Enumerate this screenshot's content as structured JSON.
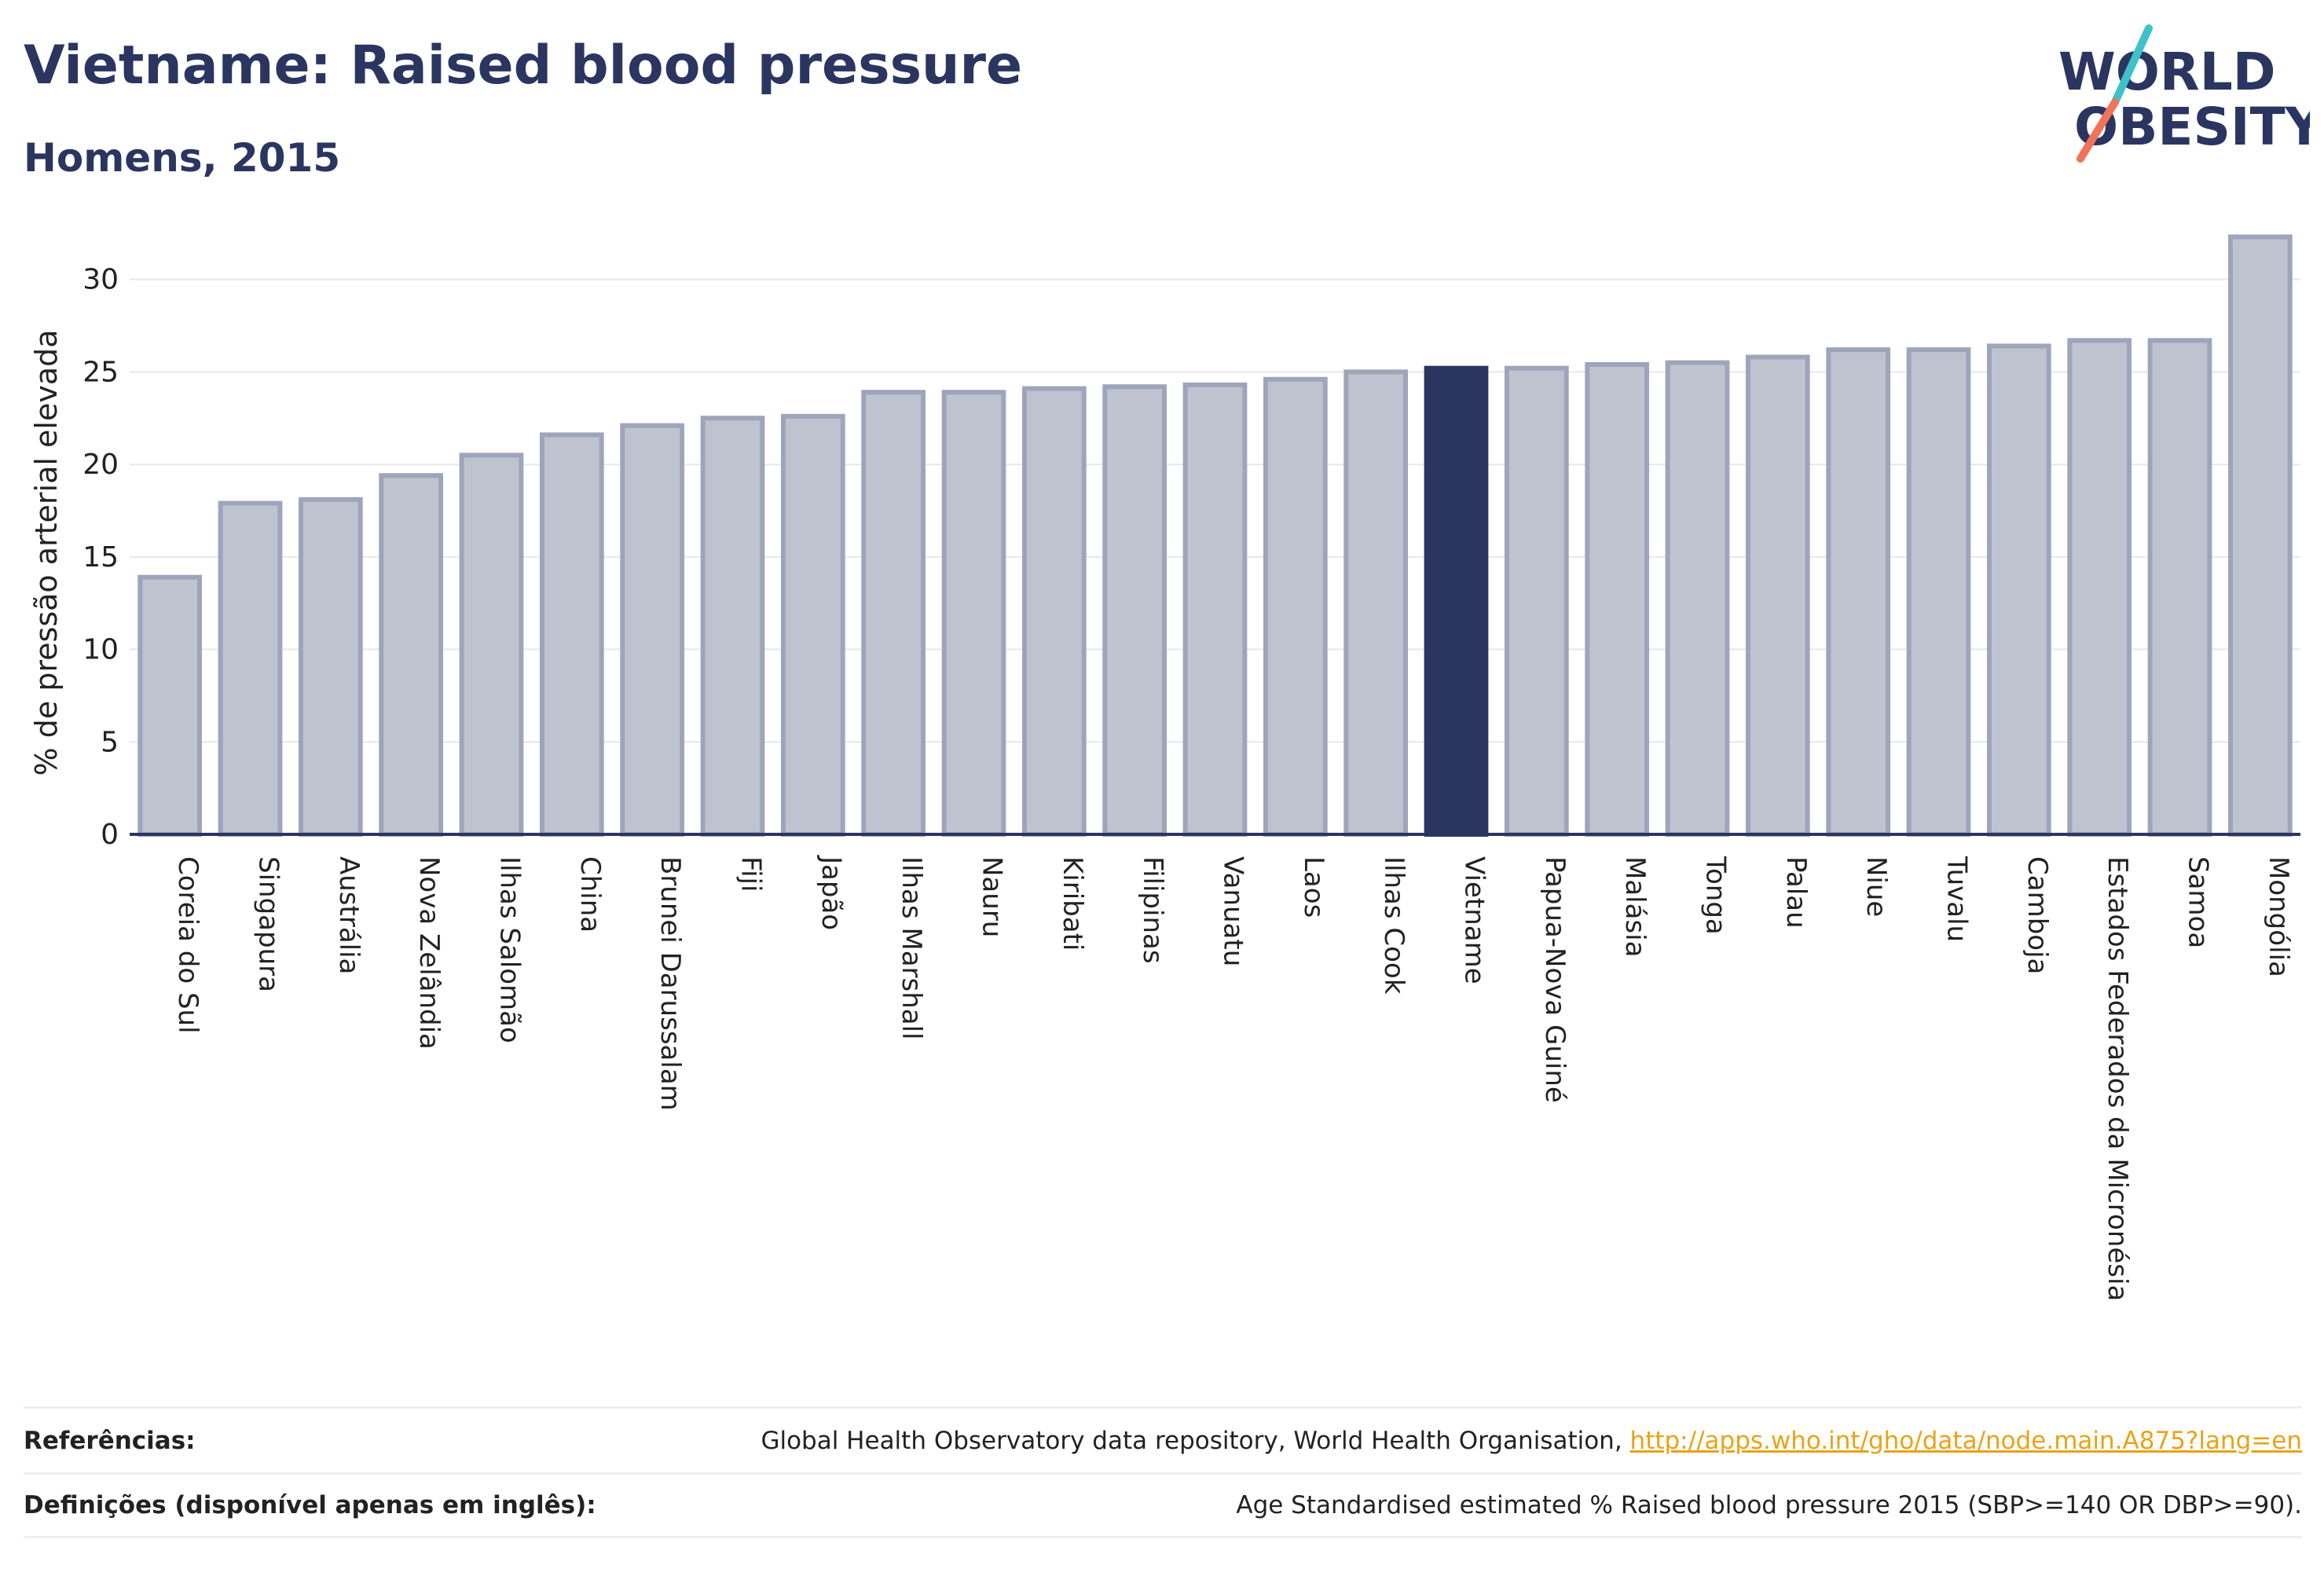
{
  "header": {
    "title": "Vietname: Raised blood pressure",
    "subtitle": "Homens, 2015"
  },
  "logo": {
    "line1": "WORLD",
    "line2": "OBESITY",
    "slash_colors": [
      "#3fc1c9",
      "#f0735a"
    ]
  },
  "colors": {
    "bar": "#bfc3d0",
    "bar_border": "#9ea5bb",
    "highlight": "#2a3560",
    "grid": "#e6e8ee",
    "axis": "#2a3560"
  },
  "chart_data": {
    "type": "bar",
    "title": "Vietname: Raised blood pressure",
    "subtitle": "Homens, 2015",
    "xlabel": "",
    "ylabel": "% de pressão arterial elevada",
    "ylim": [
      0,
      33
    ],
    "yticks": [
      0,
      5,
      10,
      15,
      20,
      25,
      30
    ],
    "grid": true,
    "highlight_category": "Vietname",
    "categories": [
      "Coreia do Sul",
      "Singapura",
      "Austrália",
      "Nova Zelândia",
      "Ilhas Salomão",
      "China",
      "Brunei Darussalam",
      "Fiji",
      "Japão",
      "Ilhas Marshall",
      "Nauru",
      "Kiribati",
      "Filipinas",
      "Vanuatu",
      "Laos",
      "Ilhas Cook",
      "Vietname",
      "Papua-Nova Guiné",
      "Malásia",
      "Tonga",
      "Palau",
      "Niue",
      "Tuvalu",
      "Camboja",
      "Estados Federados da Micronésia",
      "Samoa",
      "Mongólia"
    ],
    "values": [
      13.9,
      17.9,
      18.1,
      19.4,
      20.5,
      21.6,
      22.1,
      22.5,
      22.6,
      23.9,
      23.9,
      24.1,
      24.2,
      24.3,
      24.6,
      25.0,
      25.2,
      25.2,
      25.4,
      25.5,
      25.8,
      26.2,
      26.2,
      26.4,
      26.7,
      26.7,
      32.3
    ]
  },
  "footer": {
    "references_label": "Referências:",
    "references_text": "Global Health Observatory data repository, World Health Organisation, ",
    "references_link": "http://apps.who.int/gho/data/node.main.A875?lang=en",
    "definitions_label": "Definições (disponível apenas em inglês):",
    "definitions_text": "Age Standardised estimated % Raised blood pressure 2015 (SBP>=140 OR DBP>=90)."
  }
}
